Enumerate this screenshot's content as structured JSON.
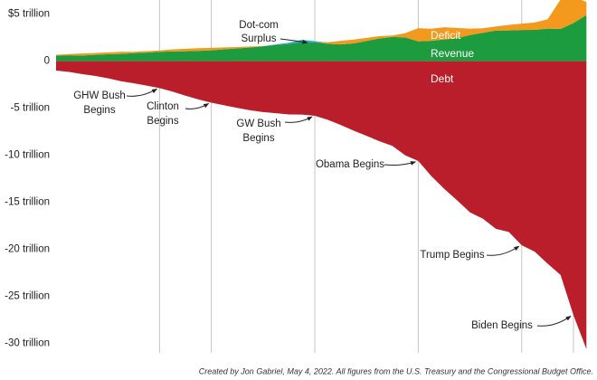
{
  "chart_data": {
    "type": "area",
    "categories": [
      null,
      null,
      null,
      null,
      null,
      null,
      null,
      null,
      null,
      null,
      null,
      null,
      null,
      null,
      null,
      null,
      null,
      null,
      null,
      null,
      null,
      null,
      null,
      null,
      null,
      null,
      null,
      null,
      null,
      null,
      null,
      null,
      null,
      null,
      null,
      null,
      null,
      null,
      null,
      null,
      null,
      null
    ],
    "series": [
      {
        "name": "Revenue",
        "color": "#1c9b3f",
        "values": [
          0.6,
          0.62,
          0.6,
          0.67,
          0.73,
          0.77,
          0.85,
          0.91,
          0.99,
          1.03,
          1.05,
          1.09,
          1.15,
          1.26,
          1.35,
          1.45,
          1.58,
          1.72,
          1.83,
          2.03,
          1.99,
          1.85,
          1.78,
          1.88,
          2.15,
          2.41,
          2.57,
          2.52,
          2.1,
          2.16,
          2.3,
          2.45,
          2.78,
          3.02,
          3.25,
          3.27,
          3.32,
          3.33,
          3.46,
          3.42,
          4.05,
          4.9
        ]
      },
      {
        "name": "Dot-com Surplus",
        "color": "#2aa7d8",
        "values": [
          0,
          0,
          0,
          0,
          0,
          0,
          0,
          0,
          0,
          0,
          0,
          0,
          0,
          0,
          0,
          0,
          0,
          0.07,
          0.13,
          0.24,
          0.13,
          0,
          0,
          0,
          0,
          0,
          0,
          0,
          0,
          0,
          0,
          0,
          0,
          0,
          0,
          0,
          0,
          0,
          0,
          0,
          0,
          0
        ]
      },
      {
        "name": "Deficit",
        "color": "#f39a1e",
        "values": [
          0.08,
          0.13,
          0.21,
          0.19,
          0.21,
          0.22,
          0.15,
          0.16,
          0.15,
          0.22,
          0.27,
          0.29,
          0.26,
          0.2,
          0.16,
          0.11,
          0.02,
          0,
          0,
          0,
          0,
          0.16,
          0.38,
          0.41,
          0.32,
          0.25,
          0.16,
          0.46,
          1.41,
          1.29,
          1.3,
          1.08,
          0.68,
          0.48,
          0.44,
          0.58,
          0.67,
          0.78,
          0.98,
          3.13,
          2.78,
          1.4
        ]
      },
      {
        "name": "Debt",
        "color": "#bb1e2b",
        "values": [
          -1.0,
          -1.14,
          -1.37,
          -1.57,
          -1.82,
          -2.13,
          -2.35,
          -2.6,
          -2.86,
          -3.23,
          -3.67,
          -4.06,
          -4.41,
          -4.69,
          -4.97,
          -5.22,
          -5.41,
          -5.53,
          -5.66,
          -5.67,
          -5.81,
          -6.23,
          -6.78,
          -7.38,
          -7.93,
          -8.51,
          -9.01,
          -10.02,
          -10.6,
          -12.2,
          -13.56,
          -14.79,
          -16.07,
          -16.74,
          -17.82,
          -18.15,
          -19.57,
          -20.24,
          -21.52,
          -22.72,
          -27.0,
          -30.6
        ]
      }
    ],
    "events": [
      {
        "label": [
          "GHW Bush",
          "Begins"
        ],
        "at": 8
      },
      {
        "label": [
          "Clinton",
          "Begins"
        ],
        "at": 12
      },
      {
        "label": [
          "GW Bush",
          "Begins"
        ],
        "at": 20
      },
      {
        "label": [
          "Obama Begins"
        ],
        "at": 28
      },
      {
        "label": [
          "Trump Begins"
        ],
        "at": 36
      },
      {
        "label": [
          "Biden Begins"
        ],
        "at": 40
      }
    ],
    "ylim": [
      -31,
      6.5
    ],
    "yticks": [
      {
        "value": 5,
        "label": "$5 trillion"
      },
      0,
      {
        "value": -5,
        "label": "-5 trillion"
      },
      {
        "value": -10,
        "label": "-10 trillion"
      },
      {
        "value": -15,
        "label": "-15 trillion"
      },
      {
        "value": -20,
        "label": "-20 trillion"
      },
      {
        "value": -25,
        "label": "-25 trillion"
      },
      {
        "value": -30,
        "label": "-30 trillion"
      }
    ],
    "footnote": "Created by Jon Gabriel, May 4, 2022. All figures from the U.S. Treasury and the Congressional Budget Office."
  }
}
